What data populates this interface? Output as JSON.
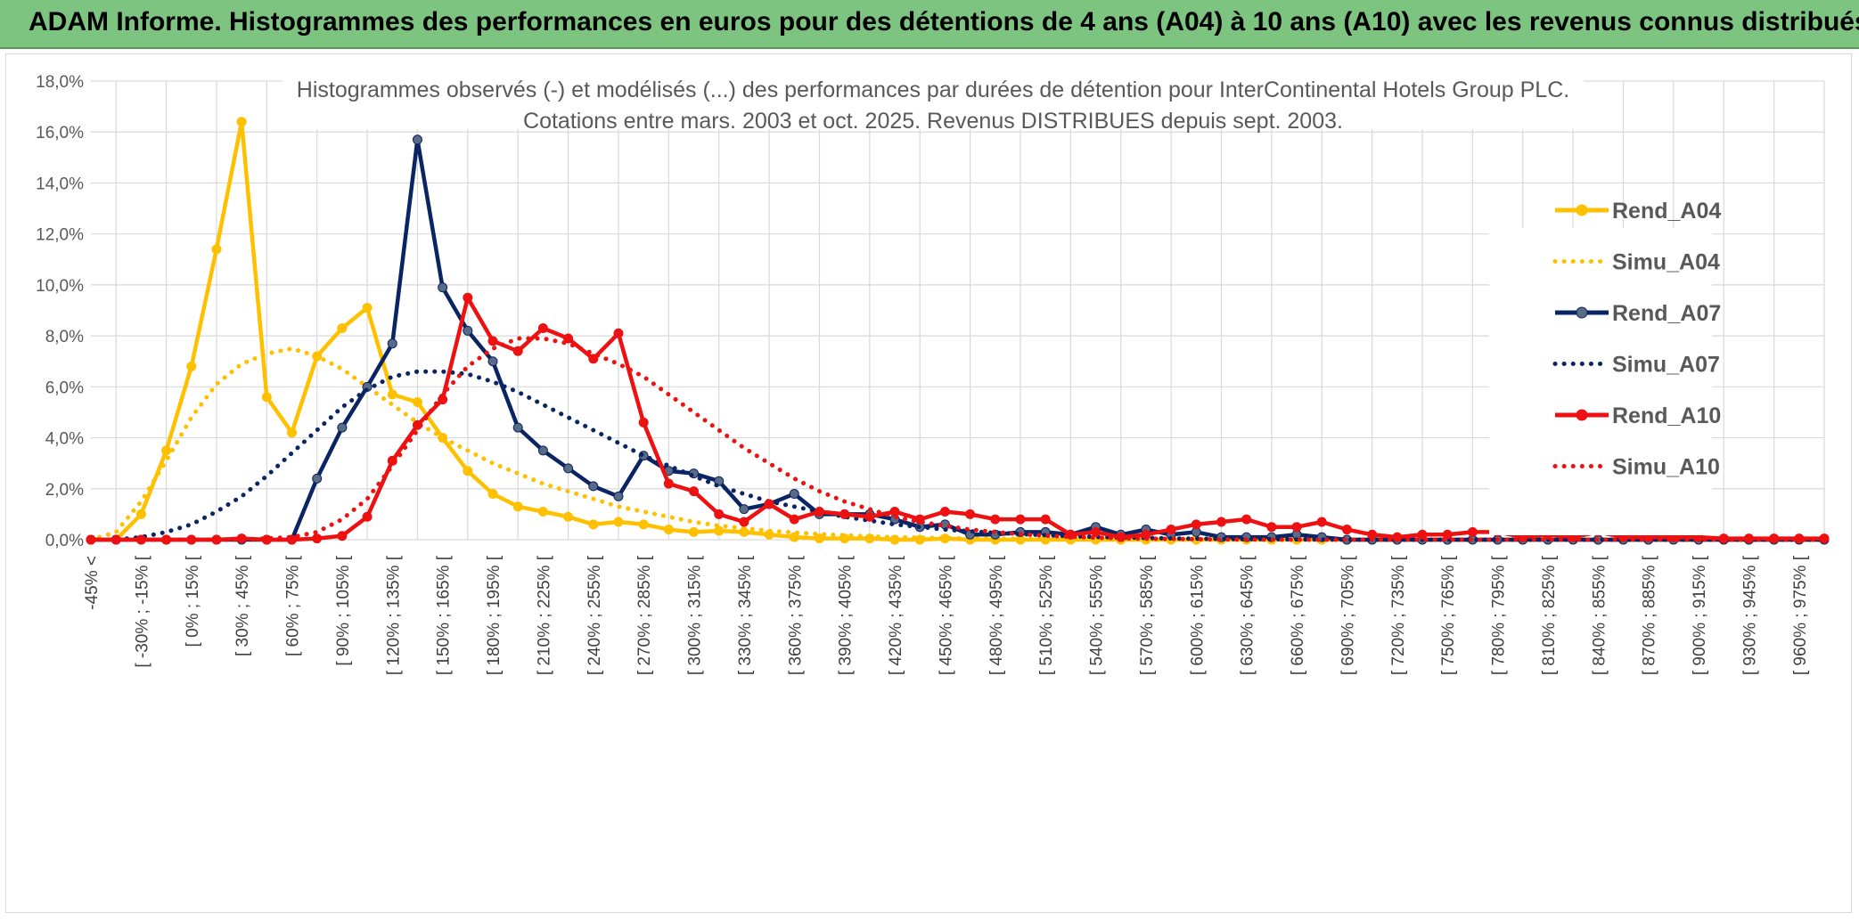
{
  "banner": {
    "title": "ADAM Informe. Histogrammes des performances en euros pour des détentions de 4 ans (A04) à 10 ans (A10) avec les revenus connus distribués"
  },
  "chart_data": {
    "type": "line",
    "title": [
      "Histogrammes observés (-) et modélisés (...) des performances par durées de détention pour InterContinental Hotels Group PLC.",
      "Cotations entre mars. 2003 et oct. 2025. Revenus DISTRIBUES depuis sept. 2003."
    ],
    "xlabel": "",
    "ylabel": "",
    "ylim": [
      0,
      18
    ],
    "y_ticks": [
      "0,0%",
      "2,0%",
      "4,0%",
      "6,0%",
      "8,0%",
      "10,0%",
      "12,0%",
      "14,0%",
      "16,0%",
      "18,0%"
    ],
    "x_labels": [
      "-45% <",
      "[ -30% ; -15% [",
      "[ 0% ; 15% [",
      "[ 30% ; 45% [",
      "[ 60% ; 75% [",
      "[ 90% ; 105% [",
      "[ 120% ; 135% [",
      "[ 150% ; 165% [",
      "[ 180% ; 195% [",
      "[ 210% ; 225% [",
      "[ 240% ; 255% [",
      "[ 270% ; 285% [",
      "[ 300% ; 315% [",
      "[ 330% ; 345% [",
      "[ 360% ; 375% [",
      "[ 390% ; 405% [",
      "[ 420% ; 435% [",
      "[ 450% ; 465% [",
      "[ 480% ; 495% [",
      "[ 510% ; 525% [",
      "[ 540% ; 555% [",
      "[ 570% ; 585% [",
      "[ 600% ; 615% [",
      "[ 630% ; 645% [",
      "[ 660% ; 675% [",
      "[ 690% ; 705% [",
      "[ 720% ; 735% [",
      "[ 750% ; 765% [",
      "[ 780% ; 795% [",
      "[ 810% ; 825% [",
      "[ 840% ; 855% [",
      "[ 870% ; 885% [",
      "[ 900% ; 915% [",
      "[ 930% ; 945% [",
      "[ 960% ; 975% ["
    ],
    "n_points": 70,
    "legend_position": "right",
    "series": [
      {
        "name": "Rend_A04",
        "style": "solid",
        "marker": true,
        "color": "#ffc000",
        "values": [
          0,
          0,
          1.0,
          3.5,
          6.8,
          11.4,
          16.4,
          5.6,
          4.2,
          7.2,
          8.3,
          9.1,
          5.7,
          5.4,
          4.0,
          2.7,
          1.8,
          1.3,
          1.1,
          0.9,
          0.6,
          0.7,
          0.6,
          0.4,
          0.3,
          0.35,
          0.3,
          0.2,
          0.1,
          0.05,
          0.05,
          0.05,
          0,
          0,
          0.05,
          0,
          0,
          0,
          0,
          0,
          0,
          0,
          0,
          0,
          0,
          0,
          0,
          0,
          0,
          0,
          0,
          0,
          0,
          0,
          0,
          0,
          0,
          0,
          0,
          0,
          0,
          0,
          0,
          0,
          0,
          0,
          0,
          0,
          0,
          0
        ]
      },
      {
        "name": "Simu_A04",
        "style": "dotted",
        "marker": false,
        "color": "#ffc000",
        "values": [
          0,
          0.3,
          1.5,
          3.1,
          4.8,
          6.1,
          6.9,
          7.3,
          7.5,
          7.2,
          6.7,
          6.0,
          5.3,
          4.6,
          4.0,
          3.5,
          3.0,
          2.6,
          2.2,
          1.9,
          1.6,
          1.3,
          1.1,
          0.9,
          0.7,
          0.55,
          0.45,
          0.35,
          0.28,
          0.22,
          0.17,
          0.13,
          0.1,
          0.08,
          0.06,
          0.05,
          0.04,
          0.03,
          0.02,
          0.01,
          0.01,
          0,
          0,
          0,
          0,
          0,
          0,
          0,
          0,
          0,
          0,
          0,
          0,
          0,
          0,
          0,
          0,
          0,
          0,
          0,
          0,
          0,
          0,
          0,
          0,
          0,
          0,
          0,
          0,
          0
        ]
      },
      {
        "name": "Rend_A07",
        "style": "solid",
        "marker": true,
        "color": "#0b2463",
        "values": [
          0,
          0,
          0,
          0,
          0,
          0,
          0,
          0,
          0,
          2.4,
          4.4,
          6.0,
          7.7,
          15.7,
          9.9,
          8.2,
          7.0,
          4.4,
          3.5,
          2.8,
          2.1,
          1.7,
          3.3,
          2.7,
          2.6,
          2.3,
          1.2,
          1.4,
          1.8,
          1.0,
          1.0,
          1.0,
          0.8,
          0.5,
          0.6,
          0.2,
          0.2,
          0.3,
          0.3,
          0.2,
          0.5,
          0.2,
          0.4,
          0.2,
          0.3,
          0.1,
          0.1,
          0.1,
          0.2,
          0.1,
          0,
          0,
          0,
          0,
          0,
          0,
          0,
          0,
          0,
          0,
          0,
          0,
          0,
          0,
          0,
          0,
          0,
          0,
          0,
          0
        ]
      },
      {
        "name": "Simu_A07",
        "style": "dotted",
        "marker": false,
        "color": "#0b2463",
        "values": [
          0,
          0,
          0.1,
          0.3,
          0.6,
          1.1,
          1.7,
          2.5,
          3.4,
          4.3,
          5.2,
          5.9,
          6.4,
          6.6,
          6.6,
          6.5,
          6.2,
          5.8,
          5.3,
          4.8,
          4.3,
          3.8,
          3.3,
          2.9,
          2.5,
          2.1,
          1.8,
          1.5,
          1.3,
          1.1,
          0.9,
          0.75,
          0.6,
          0.5,
          0.4,
          0.33,
          0.27,
          0.22,
          0.18,
          0.14,
          0.11,
          0.09,
          0.07,
          0.05,
          0.04,
          0.03,
          0.02,
          0.02,
          0.01,
          0.01,
          0,
          0,
          0,
          0,
          0,
          0,
          0,
          0,
          0,
          0,
          0,
          0,
          0,
          0,
          0,
          0,
          0,
          0,
          0,
          0
        ]
      },
      {
        "name": "Rend_A10",
        "style": "solid",
        "marker": true,
        "color": "#ee1111",
        "values": [
          0,
          0,
          0,
          0,
          0,
          0,
          0.05,
          0,
          0,
          0.05,
          0.15,
          0.9,
          3.1,
          4.5,
          5.5,
          9.5,
          7.8,
          7.4,
          8.3,
          7.9,
          7.1,
          8.1,
          4.6,
          2.2,
          1.9,
          1.0,
          0.7,
          1.4,
          0.8,
          1.1,
          1.0,
          0.9,
          1.1,
          0.8,
          1.1,
          1.0,
          0.8,
          0.8,
          0.8,
          0.2,
          0.3,
          0.1,
          0.2,
          0.4,
          0.6,
          0.7,
          0.8,
          0.5,
          0.5,
          0.7,
          0.4,
          0.2,
          0.1,
          0.2,
          0.2,
          0.3,
          0.3,
          0.1,
          0.2,
          0.1,
          0.3,
          0.1,
          0.1,
          0.1,
          0.1,
          0.05,
          0.05,
          0.05,
          0.05,
          0.05
        ]
      },
      {
        "name": "Simu_A10",
        "style": "dotted",
        "marker": false,
        "color": "#ee1111",
        "values": [
          0,
          0,
          0,
          0,
          0,
          0,
          0,
          0.05,
          0.1,
          0.3,
          0.8,
          1.6,
          2.9,
          4.3,
          5.7,
          6.8,
          7.5,
          7.9,
          7.9,
          7.7,
          7.3,
          6.9,
          6.4,
          5.7,
          5.0,
          4.3,
          3.6,
          3.0,
          2.4,
          1.9,
          1.5,
          1.2,
          0.9,
          0.7,
          0.55,
          0.4,
          0.3,
          0.22,
          0.16,
          0.12,
          0.08,
          0.06,
          0.04,
          0.03,
          0.02,
          0.01,
          0.01,
          0,
          0,
          0,
          0,
          0,
          0,
          0,
          0,
          0,
          0,
          0,
          0,
          0,
          0,
          0,
          0,
          0,
          0,
          0,
          0,
          0,
          0,
          0
        ]
      }
    ]
  }
}
